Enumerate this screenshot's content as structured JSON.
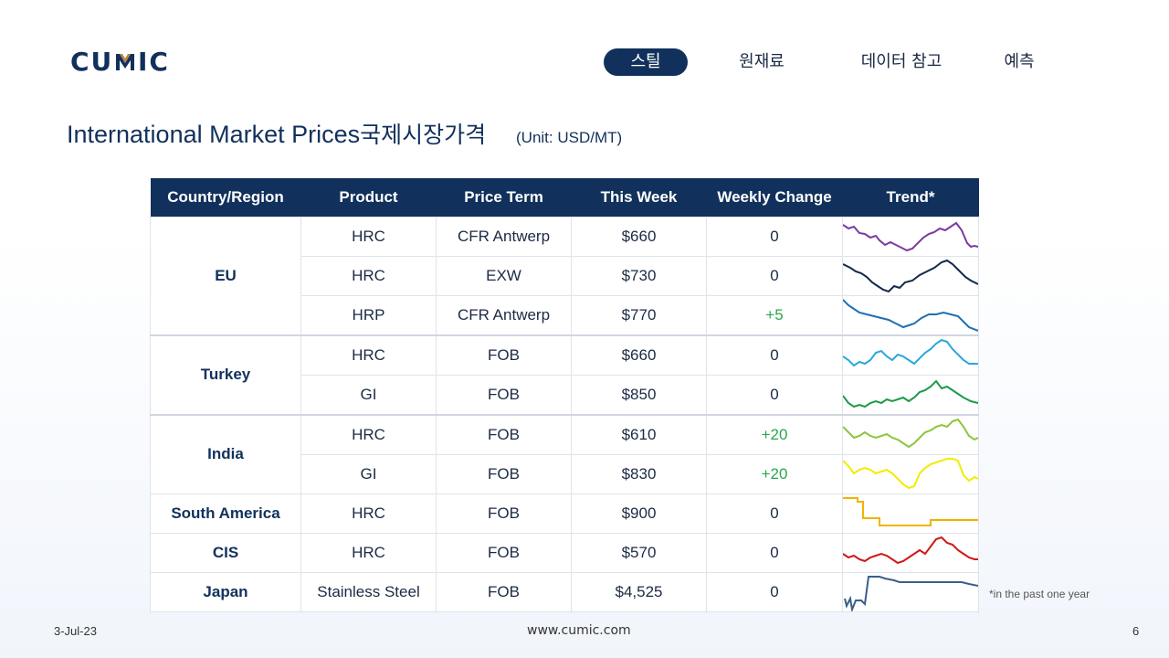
{
  "brand": {
    "logo_text": "CUMIC",
    "colors": {
      "navy": "#11315c",
      "gold": "#b8863b"
    }
  },
  "nav": {
    "items": [
      {
        "label": "스틸",
        "active": true
      },
      {
        "label": "원재료",
        "active": false
      },
      {
        "label": "데이터 참고",
        "active": false
      },
      {
        "label": "예측",
        "active": false
      }
    ]
  },
  "page": {
    "title_en": "International Market Prices",
    "title_kr": "국제시장가격",
    "unit": "(Unit: USD/MT)"
  },
  "table": {
    "headers": [
      "Country/Region",
      "Product",
      "Price Term",
      "This Week",
      "Weekly Change",
      "Trend*"
    ],
    "rows": [
      {
        "country": "EU",
        "product": "HRC",
        "term": "CFR Antwerp",
        "price": "$660",
        "change": "0",
        "trend_color": "#7b3aa0"
      },
      {
        "country": "",
        "product": "HRC",
        "term": "EXW",
        "price": "$730",
        "change": "0",
        "trend_color": "#13294b"
      },
      {
        "country": "",
        "product": "HRP",
        "term": "CFR Antwerp",
        "price": "$770",
        "change": "+5",
        "trend_color": "#1f6fb2"
      },
      {
        "country": "Turkey",
        "product": "HRC",
        "term": "FOB",
        "price": "$660",
        "change": "0",
        "trend_color": "#2aa8dc"
      },
      {
        "country": "",
        "product": "GI",
        "term": "FOB",
        "price": "$850",
        "change": "0",
        "trend_color": "#1e9a4a"
      },
      {
        "country": "India",
        "product": "HRC",
        "term": "FOB",
        "price": "$610",
        "change": "+20",
        "trend_color": "#8cc63f"
      },
      {
        "country": "",
        "product": "GI",
        "term": "FOB",
        "price": "$830",
        "change": "+20",
        "trend_color": "#f2ec00"
      },
      {
        "country": "South America",
        "product": "HRC",
        "term": "FOB",
        "price": "$900",
        "change": "0",
        "trend_color": "#f0b400"
      },
      {
        "country": "CIS",
        "product": "HRC",
        "term": "FOB",
        "price": "$570",
        "change": "0",
        "trend_color": "#d01818"
      },
      {
        "country": "Japan",
        "product": "Stainless Steel",
        "term": "FOB",
        "price": "$4,525",
        "change": "0",
        "trend_color": "#3a5f8a"
      }
    ]
  },
  "footnote": "*in the past one year",
  "footer": {
    "date": "3-Jul-23",
    "url": "www.cumic.com",
    "page": "6"
  }
}
